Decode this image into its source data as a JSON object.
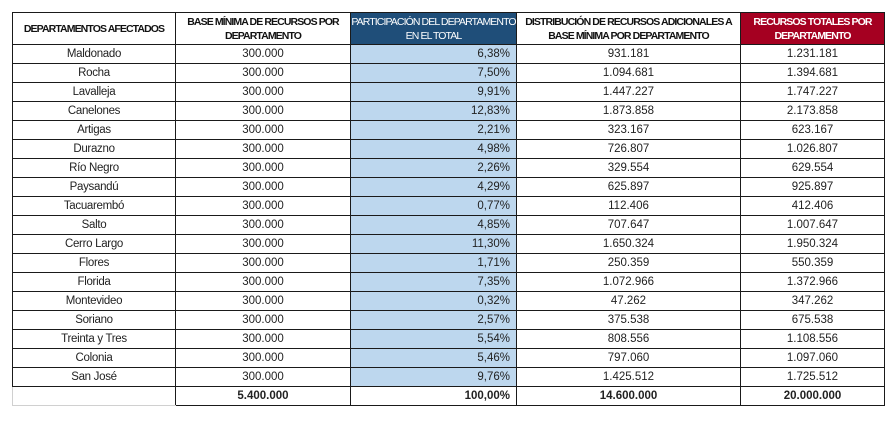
{
  "headers": {
    "departamento": "DEPARTAMENTOS AFECTADOS",
    "base": "BASE MÍNIMA DE RECURSOS POR DEPARTAMENTO",
    "participacion": "PARTICIPACIÓN DEL DEPARTAMENTO EN EL TOTAL",
    "distribucion": "DISTRIBUCIÓN DE RECURSOS ADICIONALES A BASE MÍNIMA POR DEPARTAMENTO",
    "total": "RECURSOS TOTALES POR DEPARTAMENTO"
  },
  "colors": {
    "participacion_header": "#1f4e79",
    "participacion_cells": "#bdd7ee",
    "total_header": "#a50021"
  },
  "rows": [
    {
      "departamento": "Maldonado",
      "base": "300.000",
      "participacion": "6,38%",
      "distribucion": "931.181",
      "total": "1.231.181"
    },
    {
      "departamento": "Rocha",
      "base": "300.000",
      "participacion": "7,50%",
      "distribucion": "1.094.681",
      "total": "1.394.681"
    },
    {
      "departamento": "Lavalleja",
      "base": "300.000",
      "participacion": "9,91%",
      "distribucion": "1.447.227",
      "total": "1.747.227"
    },
    {
      "departamento": "Canelones",
      "base": "300.000",
      "participacion": "12,83%",
      "distribucion": "1.873.858",
      "total": "2.173.858"
    },
    {
      "departamento": "Artigas",
      "base": "300.000",
      "participacion": "2,21%",
      "distribucion": "323.167",
      "total": "623.167"
    },
    {
      "departamento": "Durazno",
      "base": "300.000",
      "participacion": "4,98%",
      "distribucion": "726.807",
      "total": "1.026.807"
    },
    {
      "departamento": "Río Negro",
      "base": "300.000",
      "participacion": "2,26%",
      "distribucion": "329.554",
      "total": "629.554"
    },
    {
      "departamento": "Paysandú",
      "base": "300.000",
      "participacion": "4,29%",
      "distribucion": "625.897",
      "total": "925.897"
    },
    {
      "departamento": "Tacuarembó",
      "base": "300.000",
      "participacion": "0,77%",
      "distribucion": "112.406",
      "total": "412.406"
    },
    {
      "departamento": "Salto",
      "base": "300.000",
      "participacion": "4,85%",
      "distribucion": "707.647",
      "total": "1.007.647"
    },
    {
      "departamento": "Cerro Largo",
      "base": "300.000",
      "participacion": "11,30%",
      "distribucion": "1.650.324",
      "total": "1.950.324"
    },
    {
      "departamento": "Flores",
      "base": "300.000",
      "participacion": "1,71%",
      "distribucion": "250.359",
      "total": "550.359"
    },
    {
      "departamento": "Florida",
      "base": "300.000",
      "participacion": "7,35%",
      "distribucion": "1.072.966",
      "total": "1.372.966"
    },
    {
      "departamento": "Montevideo",
      "base": "300.000",
      "participacion": "0,32%",
      "distribucion": "47.262",
      "total": "347.262"
    },
    {
      "departamento": "Soriano",
      "base": "300.000",
      "participacion": "2,57%",
      "distribucion": "375.538",
      "total": "675.538"
    },
    {
      "departamento": "Treinta y Tres",
      "base": "300.000",
      "participacion": "5,54%",
      "distribucion": "808.556",
      "total": "1.108.556"
    },
    {
      "departamento": "Colonia",
      "base": "300.000",
      "participacion": "5,46%",
      "distribucion": "797.060",
      "total": "1.097.060"
    },
    {
      "departamento": "San José",
      "base": "300.000",
      "participacion": "9,76%",
      "distribucion": "1.425.512",
      "total": "1.725.512"
    }
  ],
  "totals": {
    "departamento": "",
    "base": "5.400.000",
    "participacion": "100,00%",
    "distribucion": "14.600.000",
    "total": "20.000.000"
  }
}
